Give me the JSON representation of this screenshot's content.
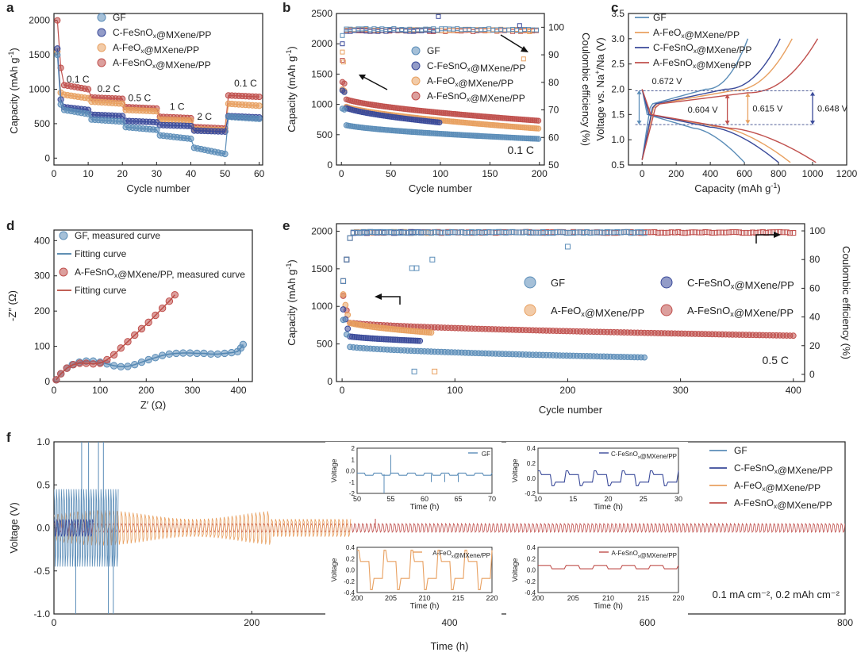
{
  "colors": {
    "GF": "#5b8db8",
    "C": "#3a4a9a",
    "AFe": "#e8a060",
    "ASn": "#c0504d",
    "fitGF": "#4a7fa8",
    "fitASn": "#b84a3e",
    "axis": "#222222",
    "dash": "#3a4a8a"
  },
  "chart_data": [
    {
      "id": "a",
      "letter": "a",
      "type": "scatter",
      "xlabel": "Cycle number",
      "ylabel_main": "Capacity (mAh g",
      "ylabel_sup": "-1",
      "ylabel_end": ")",
      "xlim": [
        0,
        61
      ],
      "ylim": [
        -100,
        2100
      ],
      "xticks": [
        0,
        10,
        20,
        30,
        40,
        50,
        60
      ],
      "yticks": [
        0,
        500,
        1000,
        1500,
        2000
      ],
      "legend": [
        {
          "series": "GF",
          "parts": [
            {
              "t": "GF"
            }
          ]
        },
        {
          "series": "C",
          "parts": [
            {
              "t": "C-FeSnO"
            },
            {
              "t": "x",
              "sub": true
            },
            {
              "t": "@MXene/PP"
            }
          ]
        },
        {
          "series": "AFe",
          "parts": [
            {
              "t": "A-FeO"
            },
            {
              "t": "x",
              "sub": true
            },
            {
              "t": "@MXene/PP"
            }
          ]
        },
        {
          "series": "ASn",
          "parts": [
            {
              "t": "A-FeSnO"
            },
            {
              "t": "x",
              "sub": true
            },
            {
              "t": "@MXene/PP"
            }
          ]
        }
      ],
      "rate_labels": [
        {
          "text": "0.1 C",
          "x": 7,
          "y": 1100
        },
        {
          "text": "0.2 C",
          "x": 16,
          "y": 960
        },
        {
          "text": "0.5 C",
          "x": 25,
          "y": 830
        },
        {
          "text": "1 C",
          "x": 36,
          "y": 700
        },
        {
          "text": "2 C",
          "x": 44,
          "y": 555
        },
        {
          "text": "0.1 C",
          "x": 56,
          "y": 1040
        }
      ],
      "series": [
        {
          "key": "ASn",
          "first": [
            2000,
            1310
          ],
          "segments": [
            [
              1060,
              1000
            ],
            [
              880,
              860
            ],
            [
              740,
              720
            ],
            [
              600,
              580
            ],
            [
              450,
              430
            ],
            [
              910,
              890
            ]
          ]
        },
        {
          "key": "AFe",
          "first": [
            1550,
            950
          ],
          "segments": [
            [
              920,
              870
            ],
            [
              820,
              790
            ],
            [
              700,
              680
            ],
            [
              560,
              545
            ],
            [
              420,
              405
            ],
            [
              790,
              760
            ]
          ]
        },
        {
          "key": "C",
          "first": [
            1590,
            850
          ],
          "segments": [
            [
              740,
              700
            ],
            [
              630,
              610
            ],
            [
              540,
              520
            ],
            [
              480,
              465
            ],
            [
              400,
              385
            ],
            [
              610,
              590
            ]
          ]
        },
        {
          "key": "GF",
          "first": [
            1500,
            780
          ],
          "segments": [
            [
              700,
              640
            ],
            [
              560,
              530
            ],
            [
              450,
              410
            ],
            [
              330,
              280
            ],
            [
              150,
              60
            ],
            [
              600,
              570
            ]
          ]
        }
      ]
    },
    {
      "id": "b",
      "letter": "b",
      "type": "scatter",
      "xlabel": "Cycle number",
      "ylabel_main": "Capacity (mAh g",
      "ylabel_sup": "-1",
      "ylabel_end": ")",
      "ylabel_right": "Coulombic efficiency (%)",
      "xlim": [
        -5,
        205
      ],
      "ylim": [
        0,
        2500
      ],
      "y2lim": [
        50,
        105
      ],
      "xticks": [
        0,
        50,
        100,
        150,
        200
      ],
      "yticks": [
        0,
        500,
        1000,
        1500,
        2000,
        2500
      ],
      "y2ticks": [
        50,
        60,
        70,
        80,
        90,
        100
      ],
      "rate_text": "0.1 C",
      "legend": [
        {
          "series": "GF",
          "parts": [
            {
              "t": "GF"
            }
          ]
        },
        {
          "series": "C",
          "parts": [
            {
              "t": "C-FeSnO"
            },
            {
              "t": "x",
              "sub": true
            },
            {
              "t": "@MXene/PP"
            }
          ]
        },
        {
          "series": "AFe",
          "parts": [
            {
              "t": "A-FeO"
            },
            {
              "t": "x",
              "sub": true
            },
            {
              "t": "@MXene/PP"
            }
          ]
        },
        {
          "series": "ASn",
          "parts": [
            {
              "t": "A-FeSnO"
            },
            {
              "t": "x",
              "sub": true
            },
            {
              "t": "@MXene/PP"
            }
          ]
        }
      ],
      "capacity": [
        {
          "key": "ASn",
          "cycles": 200,
          "start": 1120,
          "end": 730
        },
        {
          "key": "AFe",
          "cycles": 200,
          "start": 1000,
          "end": 600
        },
        {
          "key": "C",
          "cycles": 100,
          "start": 980,
          "end": 700
        },
        {
          "key": "GF",
          "cycles": 200,
          "start": 680,
          "end": 430
        }
      ],
      "ce": [
        {
          "key": "ASn",
          "value": 99
        },
        {
          "key": "AFe",
          "value": 99.3
        },
        {
          "key": "C",
          "value": 99
        },
        {
          "key": "GF",
          "value": 99.5
        }
      ]
    },
    {
      "id": "c",
      "letter": "c",
      "type": "line",
      "xlabel": "Capacity (mAh g",
      "xlabel_sup": "-1",
      "xlabel_end": ")",
      "ylabel_main": "Voltage vs. Na",
      "ylabel_sup": "+",
      "ylabel_end": "/Na (V)",
      "xlim": [
        -80,
        1200
      ],
      "ylim": [
        0.5,
        3.5
      ],
      "xticks": [
        0,
        200,
        400,
        600,
        800,
        1000,
        1200
      ],
      "yticks": [
        0.5,
        1.0,
        1.5,
        2.0,
        2.5,
        3.0,
        3.5
      ],
      "legend": [
        {
          "series": "GF",
          "parts": [
            {
              "t": "GF"
            }
          ]
        },
        {
          "series": "AFe",
          "parts": [
            {
              "t": "A-FeO"
            },
            {
              "t": "x",
              "sub": true
            },
            {
              "t": "@MXene/PP"
            }
          ]
        },
        {
          "series": "C",
          "parts": [
            {
              "t": "C-FeSnO"
            },
            {
              "t": "x",
              "sub": true
            },
            {
              "t": "@MXene/PP"
            }
          ]
        },
        {
          "series": "ASn",
          "parts": [
            {
              "t": "A-FeSnO"
            },
            {
              "t": "x",
              "sub": true
            },
            {
              "t": "@MXene/PP"
            }
          ]
        }
      ],
      "series": [
        {
          "key": "GF",
          "discharge_cap": 600,
          "charge_cap": 620,
          "plateau_charge": 1.95,
          "plateau_dis": 1.28
        },
        {
          "key": "AFe",
          "discharge_cap": 870,
          "charge_cap": 880,
          "plateau_charge": 1.92,
          "plateau_dis": 1.31
        },
        {
          "key": "C",
          "discharge_cap": 800,
          "charge_cap": 810,
          "plateau_charge": 1.95,
          "plateau_dis": 1.3
        },
        {
          "key": "ASn",
          "discharge_cap": 1020,
          "charge_cap": 1030,
          "plateau_charge": 1.88,
          "plateau_dis": 1.28
        }
      ],
      "gaps": [
        {
          "text": "0.672 V",
          "key": "GF",
          "x": 20,
          "y_top": 1.98,
          "y_bot": 1.3
        },
        {
          "text": "0.604 V",
          "key": "ASn",
          "x": 500,
          "y_top": 1.9,
          "y_bot": 1.3
        },
        {
          "text": "0.615 V",
          "key": "AFe",
          "x": 620,
          "y_top": 1.93,
          "y_bot": 1.31
        },
        {
          "text": "0.648 V",
          "key": "C",
          "x": 1000,
          "y_top": 1.95,
          "y_bot": 1.3
        }
      ]
    },
    {
      "id": "d",
      "letter": "d",
      "type": "scatter",
      "xlabel": "Z′ (Ω)",
      "ylabel": "-Z″ (Ω)",
      "xlim": [
        0,
        430
      ],
      "ylim": [
        0,
        430
      ],
      "xticks": [
        0,
        100,
        200,
        300,
        400
      ],
      "yticks": [
        0,
        100,
        200,
        300,
        400
      ],
      "legend": [
        {
          "series": "GF",
          "marker": "dot",
          "parts": [
            {
              "t": "GF, measured curve"
            }
          ]
        },
        {
          "series": "fitGF",
          "marker": "line",
          "parts": [
            {
              "t": "Fitting curve"
            }
          ]
        },
        {
          "series": "ASn",
          "marker": "dot",
          "parts": [
            {
              "t": "A-FeSnO"
            },
            {
              "t": "x",
              "sub": true
            },
            {
              "t": "@MXene/PP, measured curve"
            }
          ]
        },
        {
          "series": "fitASn",
          "marker": "line",
          "parts": [
            {
              "t": "Fitting curve"
            }
          ]
        }
      ],
      "series": [
        {
          "key": "GF",
          "x": [
            5,
            15,
            28,
            40,
            55,
            70,
            85,
            100,
            115,
            130,
            145,
            160,
            175,
            190,
            205,
            220,
            235,
            250,
            265,
            280,
            295,
            310,
            325,
            340,
            355,
            370,
            385,
            398,
            405,
            410
          ],
          "y": [
            5,
            22,
            38,
            48,
            55,
            58,
            58,
            55,
            50,
            45,
            42,
            43,
            48,
            55,
            62,
            68,
            74,
            78,
            80,
            81,
            81,
            80,
            80,
            78,
            78,
            80,
            82,
            85,
            95,
            105
          ]
        },
        {
          "key": "ASn",
          "x": [
            5,
            15,
            28,
            42,
            56,
            70,
            85,
            100,
            115,
            130,
            145,
            160,
            175,
            190,
            205,
            220,
            235,
            250,
            262
          ],
          "y": [
            5,
            22,
            38,
            48,
            52,
            52,
            50,
            52,
            62,
            76,
            95,
            113,
            132,
            150,
            168,
            188,
            208,
            228,
            246
          ]
        }
      ]
    },
    {
      "id": "e",
      "letter": "e",
      "type": "scatter",
      "xlabel": "Cycle number",
      "ylabel_main": "Capacity (mAh g",
      "ylabel_sup": "-1",
      "ylabel_end": ")",
      "ylabel_right": "Coulombic efficiency (%)",
      "xlim": [
        -5,
        410
      ],
      "ylim": [
        0,
        2100
      ],
      "y2lim": [
        -5,
        105
      ],
      "xticks": [
        0,
        100,
        200,
        300,
        400
      ],
      "yticks": [
        0,
        500,
        1000,
        1500,
        2000
      ],
      "y2ticks": [
        0,
        20,
        40,
        60,
        80,
        100
      ],
      "rate_text": "0.5 C",
      "legend": [
        {
          "series": "GF",
          "parts": [
            {
              "t": "GF"
            }
          ]
        },
        {
          "series": "C",
          "parts": [
            {
              "t": "C-FeSnO"
            },
            {
              "t": "x",
              "sub": true
            },
            {
              "t": "@MXene/PP"
            }
          ]
        },
        {
          "series": "AFe",
          "parts": [
            {
              "t": "A-FeO"
            },
            {
              "t": "x",
              "sub": true
            },
            {
              "t": "@MXene/PP"
            }
          ]
        },
        {
          "series": "ASn",
          "parts": [
            {
              "t": "A-FeSnO"
            },
            {
              "t": "x",
              "sub": true
            },
            {
              "t": "@MXene/PP"
            }
          ]
        }
      ],
      "capacity": [
        {
          "key": "ASn",
          "cycles": 400,
          "start": 800,
          "end": 610
        },
        {
          "key": "AFe",
          "cycles": 80,
          "start": 820,
          "end": 650
        },
        {
          "key": "C",
          "cycles": 70,
          "start": 620,
          "end": 540
        },
        {
          "key": "GF",
          "cycles": 270,
          "start": 480,
          "end": 320
        }
      ]
    },
    {
      "id": "f",
      "letter": "f",
      "type": "line",
      "xlabel": "Time (h)",
      "ylabel": "Voltage (V)",
      "xlim": [
        0,
        800
      ],
      "ylim": [
        -1.0,
        1.0
      ],
      "xticks": [
        0,
        200,
        400,
        600,
        800
      ],
      "yticks": [
        -1.0,
        -0.5,
        0.0,
        0.5,
        1.0
      ],
      "condition": "0.1 mA cm⁻², 0.2 mAh cm⁻²",
      "legend": [
        {
          "series": "GF",
          "parts": [
            {
              "t": "GF"
            }
          ]
        },
        {
          "series": "C",
          "parts": [
            {
              "t": "C-FeSnO"
            },
            {
              "t": "x",
              "sub": true
            },
            {
              "t": "@MXene/PP"
            }
          ]
        },
        {
          "series": "AFe",
          "parts": [
            {
              "t": "A-FeO"
            },
            {
              "t": "x",
              "sub": true
            },
            {
              "t": "@MXene/PP"
            }
          ]
        },
        {
          "series": "ASn",
          "parts": [
            {
              "t": "A-FeSnO"
            },
            {
              "t": "x",
              "sub": true
            },
            {
              "t": "@MXene/PP"
            }
          ]
        }
      ],
      "series": [
        {
          "key": "GF",
          "end_h": 65,
          "amp": 0.45
        },
        {
          "key": "C",
          "end_h": 40,
          "amp": 0.1
        },
        {
          "key": "AFe",
          "end_h": 300,
          "amp": 0.17
        },
        {
          "key": "ASn",
          "end_h": 800,
          "amp": 0.05
        }
      ],
      "insets": [
        {
          "key": "GF",
          "label": "GF",
          "xlim": [
            50,
            70
          ],
          "ylim": [
            -2,
            2
          ],
          "xticks": [
            50,
            55,
            60,
            65,
            70
          ],
          "yticks": [
            -2,
            -1,
            0,
            1,
            2
          ],
          "ylabel": "Voltage",
          "xlabel": "Time (h)"
        },
        {
          "key": "C",
          "label": "C-FeSnOx@MXene/PP",
          "xlim": [
            10,
            30
          ],
          "ylim": [
            -0.2,
            0.4
          ],
          "xticks": [
            10,
            15,
            20,
            25,
            30
          ],
          "yticks": [
            -0.2,
            0.0,
            0.2,
            0.4
          ],
          "ylabel": "Voltage",
          "xlabel": "Time (h)"
        },
        {
          "key": "AFe",
          "label": "A-FeOx@MXene/PP",
          "xlim": [
            200,
            220
          ],
          "ylim": [
            -0.4,
            0.4
          ],
          "xticks": [
            200,
            205,
            210,
            215,
            220
          ],
          "yticks": [
            -0.4,
            -0.2,
            0.0,
            0.2,
            0.4
          ],
          "ylabel": "Voltage",
          "xlabel": "Time (h)"
        },
        {
          "key": "ASn",
          "label": "A-FeSnOx@MXene/PP",
          "xlim": [
            200,
            220
          ],
          "ylim": [
            -0.4,
            0.4
          ],
          "xticks": [
            200,
            205,
            210,
            215,
            220
          ],
          "yticks": [
            -0.4,
            -0.2,
            0.0,
            0.2,
            0.4
          ],
          "ylabel": "Voltage",
          "xlabel": "Time (h)"
        }
      ]
    }
  ]
}
